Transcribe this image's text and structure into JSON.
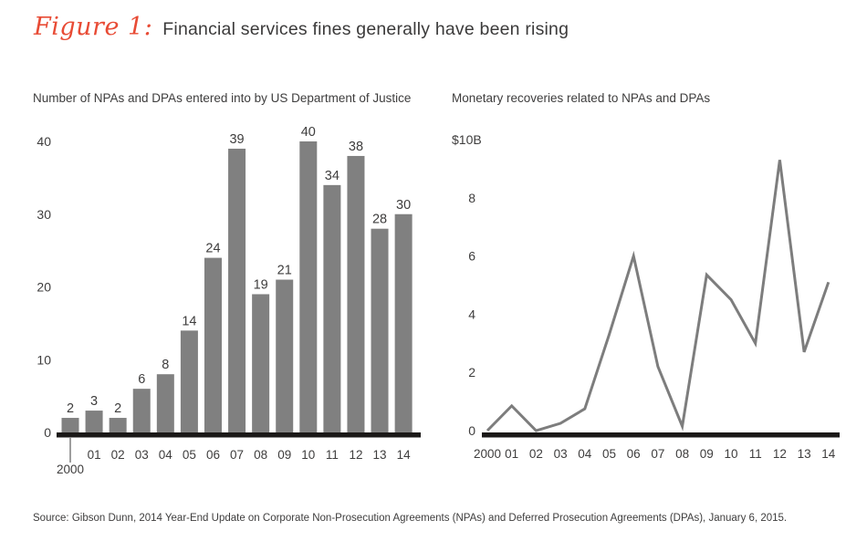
{
  "header": {
    "figure_label": "Figure 1:",
    "title": "Financial services fines generally have been rising"
  },
  "source": "Source: Gibson Dunn, 2014 Year-End Update on Corporate Non-Prosecution Agreements (NPAs) and Deferred Prosecution Agreements (DPAs), January 6, 2015.",
  "colors": {
    "accent_red": "#e84b35",
    "bar_gray": "#808080",
    "line_gray": "#7d7d7d",
    "axis_black": "#1b1918",
    "text": "#3e3d3d"
  },
  "chart_data": [
    {
      "type": "bar",
      "title": "Number of NPAs and DPAs entered into by US Department of Justice",
      "categories": [
        "2000",
        "01",
        "02",
        "03",
        "04",
        "05",
        "06",
        "07",
        "08",
        "09",
        "10",
        "11",
        "12",
        "13",
        "14"
      ],
      "values": [
        2,
        3,
        2,
        6,
        8,
        14,
        24,
        39,
        19,
        21,
        40,
        34,
        38,
        28,
        30
      ],
      "ylim": [
        0,
        40
      ],
      "yticks": [
        0,
        10,
        20,
        30,
        40
      ],
      "bar_labels": true,
      "grid": false,
      "legend": "none"
    },
    {
      "type": "line",
      "title": "Monetary recoveries related to NPAs and DPAs",
      "categories": [
        "2000",
        "01",
        "02",
        "03",
        "04",
        "05",
        "06",
        "07",
        "08",
        "09",
        "10",
        "11",
        "12",
        "13",
        "14"
      ],
      "values": [
        0,
        0.85,
        0,
        0.25,
        0.75,
        3.3,
        6.0,
        2.2,
        0.15,
        5.35,
        4.5,
        3.0,
        9.3,
        2.7,
        5.1
      ],
      "ylim": [
        0,
        10
      ],
      "yticks": [
        0,
        2,
        4,
        6,
        8
      ],
      "ytick_top_label": "$10B",
      "grid": false,
      "legend": "none"
    }
  ]
}
